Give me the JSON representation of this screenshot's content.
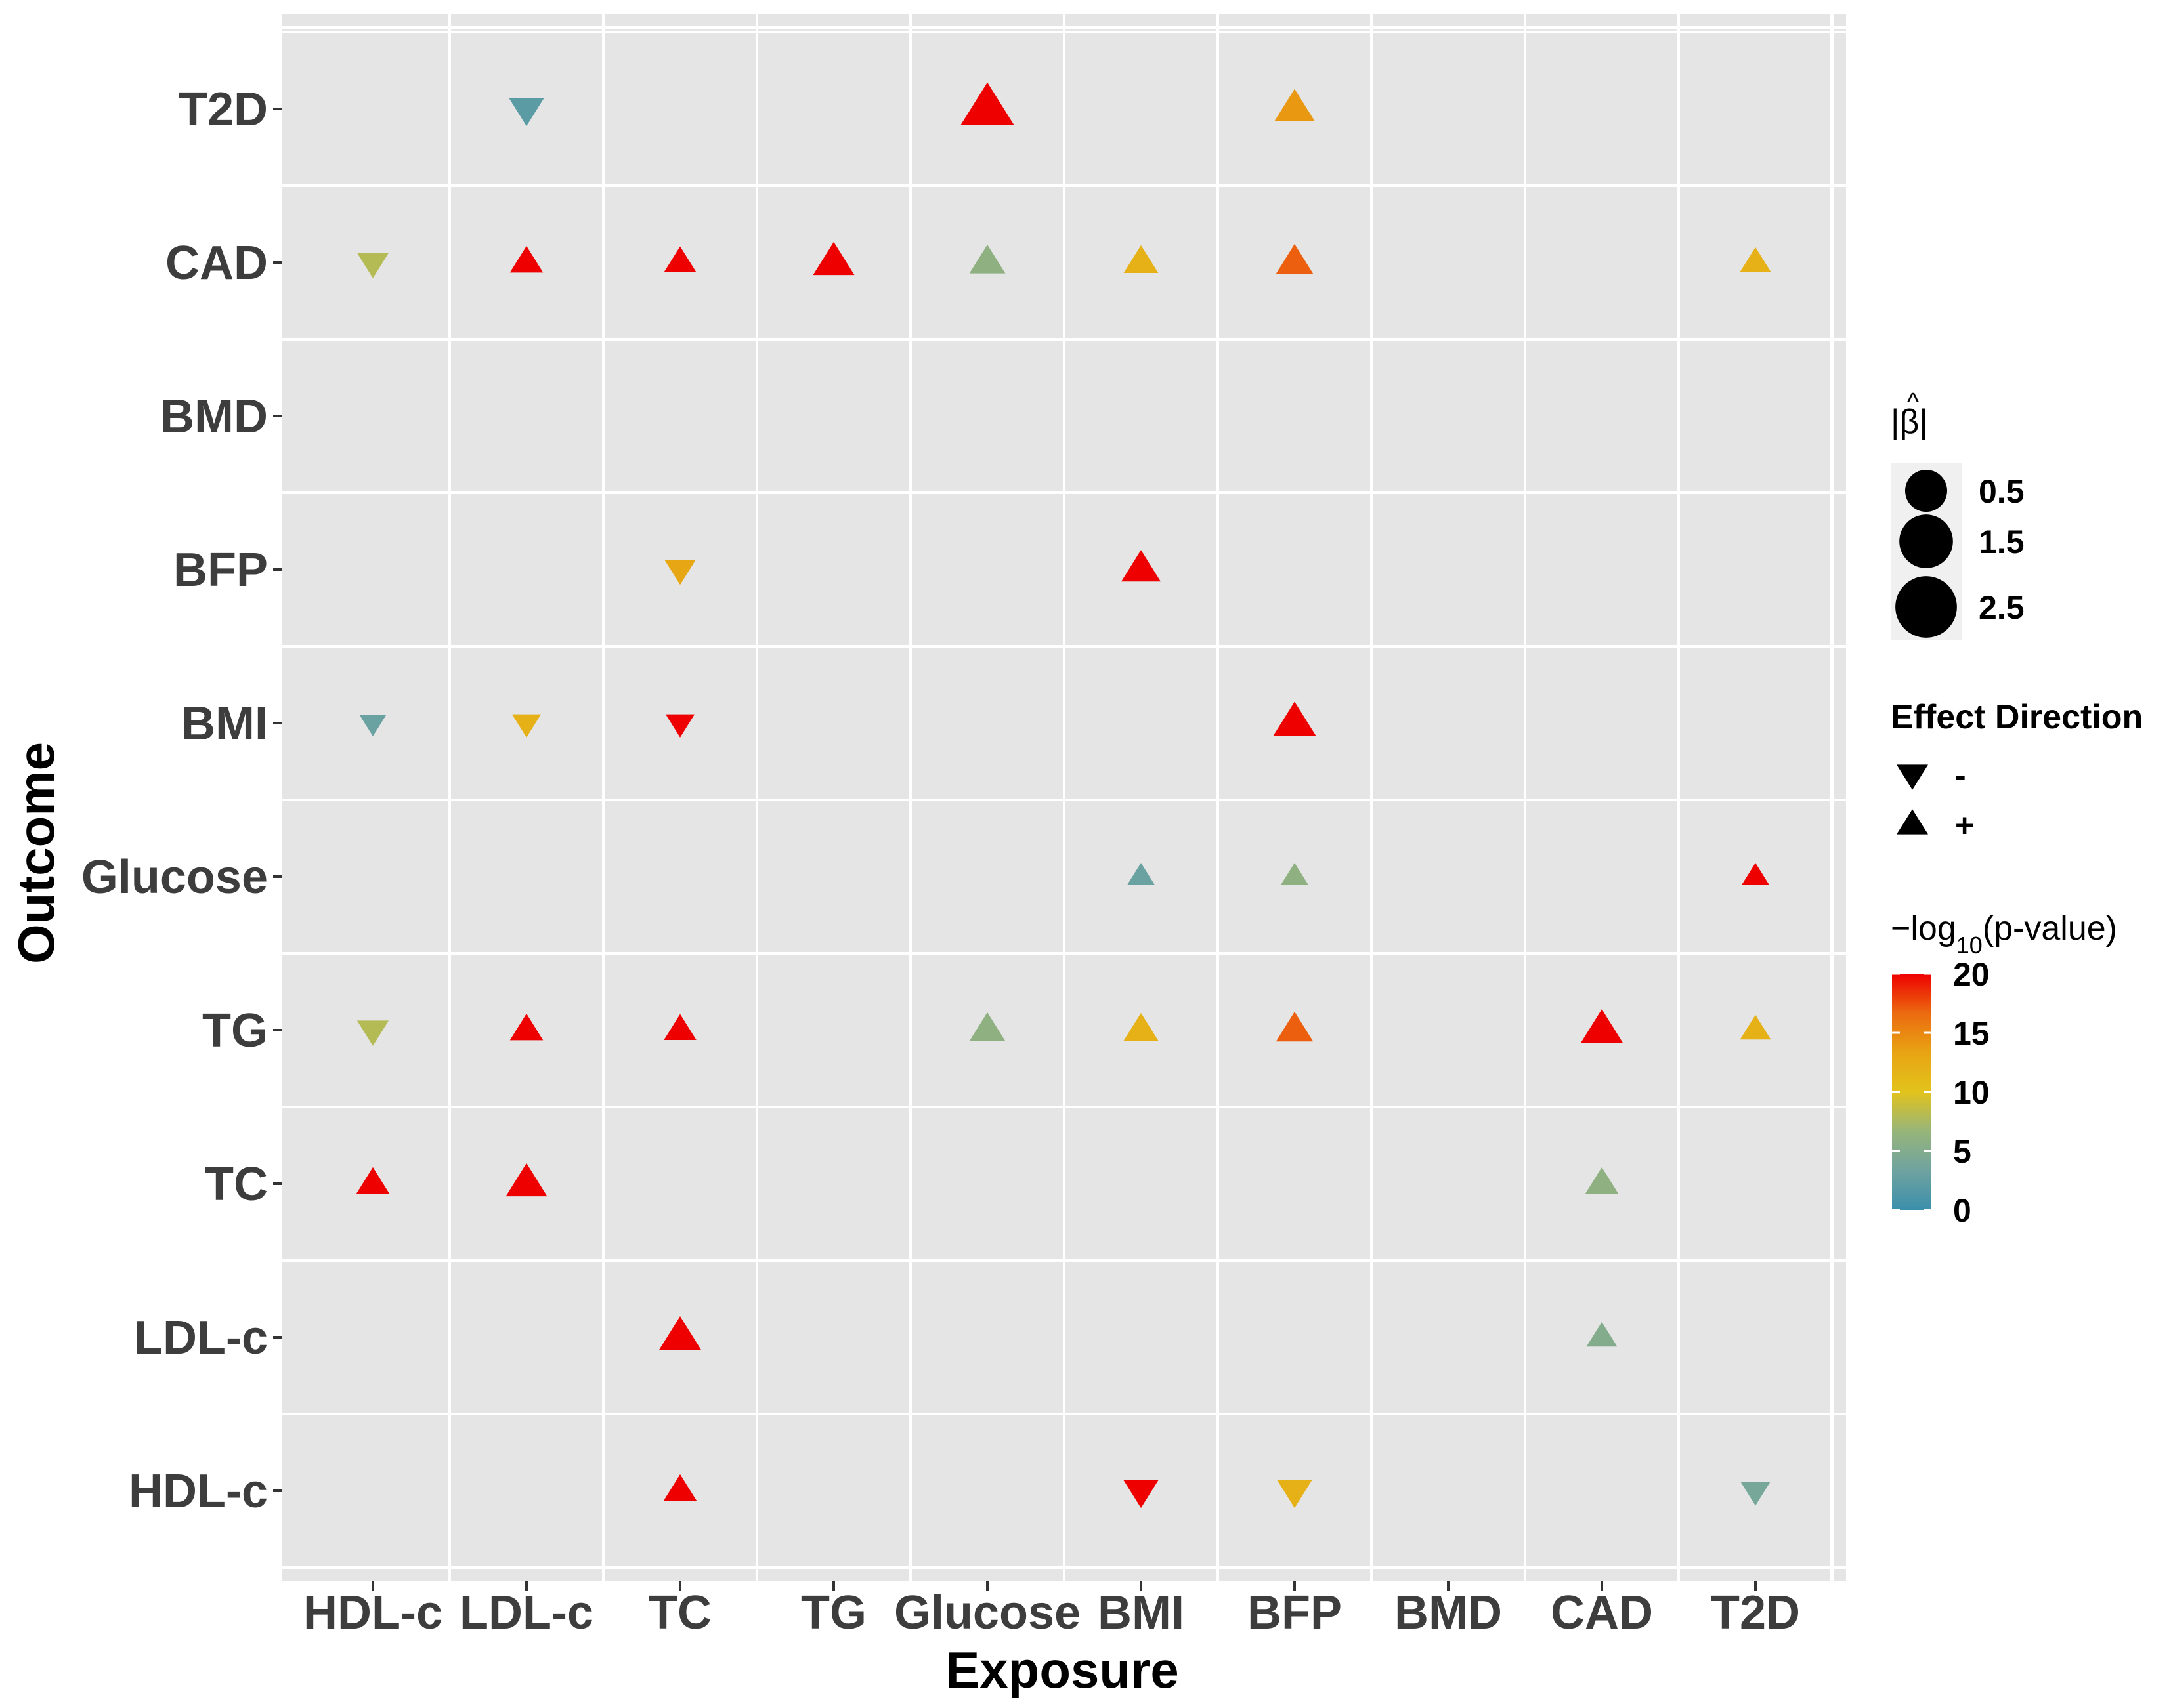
{
  "chart_data": {
    "type": "scatter",
    "title": "",
    "xlabel": "Exposure",
    "ylabel": "Outcome",
    "x_categories": [
      "HDL-c",
      "LDL-c",
      "TC",
      "TG",
      "Glucose",
      "BMI",
      "BFP",
      "BMD",
      "CAD",
      "T2D"
    ],
    "y_categories": [
      "HDL-c",
      "LDL-c",
      "TC",
      "TG",
      "Glucose",
      "BMI",
      "BFP",
      "BMD",
      "CAD",
      "T2D"
    ],
    "points": [
      {
        "exposure": "LDL-c",
        "outcome": "T2D",
        "beta_abs": 0.6,
        "direction": "-",
        "neglog10p": 2
      },
      {
        "exposure": "Glucose",
        "outcome": "T2D",
        "beta_abs": 2.8,
        "direction": "+",
        "neglog10p": 20
      },
      {
        "exposure": "BFP",
        "outcome": "T2D",
        "beta_abs": 1.1,
        "direction": "+",
        "neglog10p": 14
      },
      {
        "exposure": "HDL-c",
        "outcome": "CAD",
        "beta_abs": 0.4,
        "direction": "-",
        "neglog10p": 8
      },
      {
        "exposure": "LDL-c",
        "outcome": "CAD",
        "beta_abs": 0.5,
        "direction": "+",
        "neglog10p": 20
      },
      {
        "exposure": "TC",
        "outcome": "CAD",
        "beta_abs": 0.45,
        "direction": "+",
        "neglog10p": 20
      },
      {
        "exposure": "TG",
        "outcome": "CAD",
        "beta_abs": 1.2,
        "direction": "+",
        "neglog10p": 20
      },
      {
        "exposure": "Glucose",
        "outcome": "CAD",
        "beta_abs": 0.7,
        "direction": "+",
        "neglog10p": 6
      },
      {
        "exposure": "BMI",
        "outcome": "CAD",
        "beta_abs": 0.6,
        "direction": "+",
        "neglog10p": 12
      },
      {
        "exposure": "BFP",
        "outcome": "CAD",
        "beta_abs": 0.8,
        "direction": "+",
        "neglog10p": 17
      },
      {
        "exposure": "T2D",
        "outcome": "CAD",
        "beta_abs": 0.35,
        "direction": "+",
        "neglog10p": 12
      },
      {
        "exposure": "TC",
        "outcome": "BFP",
        "beta_abs": 0.35,
        "direction": "-",
        "neglog10p": 13
      },
      {
        "exposure": "BMI",
        "outcome": "BFP",
        "beta_abs": 1.0,
        "direction": "+",
        "neglog10p": 20
      },
      {
        "exposure": "HDL-c",
        "outcome": "BMI",
        "beta_abs": 0.15,
        "direction": "-",
        "neglog10p": 3
      },
      {
        "exposure": "LDL-c",
        "outcome": "BMI",
        "beta_abs": 0.25,
        "direction": "-",
        "neglog10p": 12
      },
      {
        "exposure": "TC",
        "outcome": "BMI",
        "beta_abs": 0.25,
        "direction": "-",
        "neglog10p": 20
      },
      {
        "exposure": "BFP",
        "outcome": "BMI",
        "beta_abs": 1.4,
        "direction": "+",
        "neglog10p": 20
      },
      {
        "exposure": "BMI",
        "outcome": "Glucose",
        "beta_abs": 0.2,
        "direction": "+",
        "neglog10p": 3
      },
      {
        "exposure": "BFP",
        "outcome": "Glucose",
        "beta_abs": 0.2,
        "direction": "+",
        "neglog10p": 6
      },
      {
        "exposure": "T2D",
        "outcome": "Glucose",
        "beta_abs": 0.2,
        "direction": "+",
        "neglog10p": 20
      },
      {
        "exposure": "HDL-c",
        "outcome": "TG",
        "beta_abs": 0.4,
        "direction": "-",
        "neglog10p": 8
      },
      {
        "exposure": "LDL-c",
        "outcome": "TG",
        "beta_abs": 0.5,
        "direction": "+",
        "neglog10p": 20
      },
      {
        "exposure": "TC",
        "outcome": "TG",
        "beta_abs": 0.45,
        "direction": "+",
        "neglog10p": 20
      },
      {
        "exposure": "Glucose",
        "outcome": "TG",
        "beta_abs": 0.7,
        "direction": "+",
        "neglog10p": 6
      },
      {
        "exposure": "BMI",
        "outcome": "TG",
        "beta_abs": 0.6,
        "direction": "+",
        "neglog10p": 12
      },
      {
        "exposure": "BFP",
        "outcome": "TG",
        "beta_abs": 0.8,
        "direction": "+",
        "neglog10p": 17
      },
      {
        "exposure": "CAD",
        "outcome": "TG",
        "beta_abs": 1.3,
        "direction": "+",
        "neglog10p": 20
      },
      {
        "exposure": "T2D",
        "outcome": "TG",
        "beta_abs": 0.35,
        "direction": "+",
        "neglog10p": 12
      },
      {
        "exposure": "HDL-c",
        "outcome": "TC",
        "beta_abs": 0.5,
        "direction": "+",
        "neglog10p": 20
      },
      {
        "exposure": "LDL-c",
        "outcome": "TC",
        "beta_abs": 1.2,
        "direction": "+",
        "neglog10p": 20
      },
      {
        "exposure": "CAD",
        "outcome": "TC",
        "beta_abs": 0.5,
        "direction": "+",
        "neglog10p": 6
      },
      {
        "exposure": "TC",
        "outcome": "LDL-c",
        "beta_abs": 1.3,
        "direction": "+",
        "neglog10p": 20
      },
      {
        "exposure": "CAD",
        "outcome": "LDL-c",
        "beta_abs": 0.35,
        "direction": "+",
        "neglog10p": 5
      },
      {
        "exposure": "TC",
        "outcome": "HDL-c",
        "beta_abs": 0.5,
        "direction": "+",
        "neglog10p": 20
      },
      {
        "exposure": "BMI",
        "outcome": "HDL-c",
        "beta_abs": 0.6,
        "direction": "-",
        "neglog10p": 20
      },
      {
        "exposure": "BFP",
        "outcome": "HDL-c",
        "beta_abs": 0.6,
        "direction": "-",
        "neglog10p": 12
      },
      {
        "exposure": "T2D",
        "outcome": "HDL-c",
        "beta_abs": 0.3,
        "direction": "-",
        "neglog10p": 4
      }
    ],
    "legend_size": {
      "title": "|β̂|",
      "title_base": "|β|",
      "title_hat": "^",
      "entries": [
        {
          "label": "0.5",
          "value": 0.5
        },
        {
          "label": "1.5",
          "value": 1.5
        },
        {
          "label": "2.5",
          "value": 2.5
        }
      ]
    },
    "legend_direction": {
      "title": "Effect Direction",
      "entries": [
        {
          "label": "-",
          "direction": "-"
        },
        {
          "label": "+",
          "direction": "+"
        }
      ]
    },
    "legend_color": {
      "title_prefix": "−log",
      "title_sub": "10",
      "title_suffix": "(p-value)",
      "range": [
        0,
        20
      ],
      "ticks": [
        {
          "label": "20",
          "value": 20
        },
        {
          "label": "15",
          "value": 15
        },
        {
          "label": "10",
          "value": 10
        },
        {
          "label": "5",
          "value": 5
        },
        {
          "label": "0",
          "value": 0
        }
      ],
      "colors": [
        "#3b8fab",
        "#6fa3a0",
        "#97b57a",
        "#e2c31c",
        "#e8a413",
        "#eb6a10",
        "#ee0000"
      ]
    },
    "panel_background": "#e5e5e5",
    "grid_color": "#ffffff",
    "legend_position": "right"
  }
}
